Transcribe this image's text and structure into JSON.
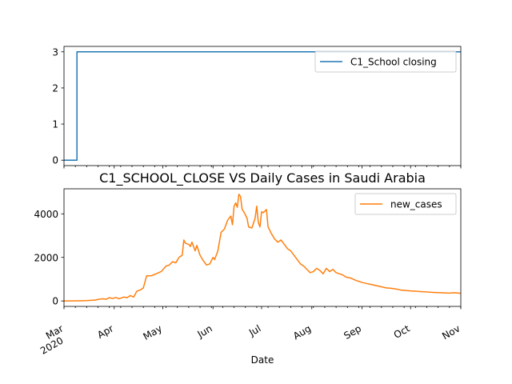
{
  "chart_data": [
    {
      "type": "line",
      "title": "",
      "ylim": [
        -0.15,
        3.15
      ],
      "yticks": [
        0,
        1,
        2,
        3
      ],
      "grid": false,
      "legend_position": "upper-right",
      "series": [
        {
          "name": "C1_School closing",
          "color": "#1f77b4",
          "points": [
            [
              "2020-03-01",
              0
            ],
            [
              "2020-03-09",
              0
            ],
            [
              "2020-03-09",
              3
            ],
            [
              "2020-11-01",
              3
            ]
          ]
        }
      ]
    },
    {
      "type": "line",
      "title": "C1_SCHOOL_CLOSE VS Daily Cases in Saudi Arabia",
      "xlabel": "Date",
      "ylim": [
        -250,
        5150
      ],
      "yticks": [
        0,
        2000,
        4000
      ],
      "xlim": [
        "2020-03-01",
        "2020-11-01"
      ],
      "grid": false,
      "legend_position": "upper-right",
      "xticks": [
        {
          "date": "2020-03-01",
          "label": "Mar",
          "sublabel": "2020"
        },
        {
          "date": "2020-04-01",
          "label": "Apr"
        },
        {
          "date": "2020-05-01",
          "label": "May"
        },
        {
          "date": "2020-06-01",
          "label": "Jun"
        },
        {
          "date": "2020-07-01",
          "label": "Jul"
        },
        {
          "date": "2020-08-01",
          "label": "Aug"
        },
        {
          "date": "2020-09-01",
          "label": "Sep"
        },
        {
          "date": "2020-10-01",
          "label": "Oct"
        },
        {
          "date": "2020-11-01",
          "label": "Nov"
        }
      ],
      "series": [
        {
          "name": "new_cases",
          "color": "#ff7f0e",
          "points": [
            [
              "2020-03-01",
              0
            ],
            [
              "2020-03-10",
              5
            ],
            [
              "2020-03-15",
              15
            ],
            [
              "2020-03-20",
              40
            ],
            [
              "2020-03-22",
              70
            ],
            [
              "2020-03-25",
              100
            ],
            [
              "2020-03-27",
              80
            ],
            [
              "2020-03-29",
              150
            ],
            [
              "2020-03-31",
              110
            ],
            [
              "2020-04-02",
              160
            ],
            [
              "2020-04-04",
              100
            ],
            [
              "2020-04-07",
              180
            ],
            [
              "2020-04-09",
              150
            ],
            [
              "2020-04-11",
              250
            ],
            [
              "2020-04-13",
              180
            ],
            [
              "2020-04-15",
              450
            ],
            [
              "2020-04-17",
              500
            ],
            [
              "2020-04-19",
              600
            ],
            [
              "2020-04-21",
              1150
            ],
            [
              "2020-04-24",
              1160
            ],
            [
              "2020-04-27",
              1250
            ],
            [
              "2020-04-30",
              1350
            ],
            [
              "2020-05-03",
              1600
            ],
            [
              "2020-05-05",
              1650
            ],
            [
              "2020-05-07",
              1800
            ],
            [
              "2020-05-09",
              1750
            ],
            [
              "2020-05-11",
              2000
            ],
            [
              "2020-05-13",
              2100
            ],
            [
              "2020-05-14",
              2800
            ],
            [
              "2020-05-15",
              2650
            ],
            [
              "2020-05-17",
              2600
            ],
            [
              "2020-05-18",
              2500
            ],
            [
              "2020-05-19",
              2700
            ],
            [
              "2020-05-21",
              2300
            ],
            [
              "2020-05-22",
              2550
            ],
            [
              "2020-05-24",
              2100
            ],
            [
              "2020-05-26",
              1850
            ],
            [
              "2020-05-28",
              1650
            ],
            [
              "2020-05-30",
              1700
            ],
            [
              "2020-06-01",
              2000
            ],
            [
              "2020-06-02",
              1900
            ],
            [
              "2020-06-04",
              2300
            ],
            [
              "2020-06-06",
              3150
            ],
            [
              "2020-06-08",
              3300
            ],
            [
              "2020-06-10",
              3700
            ],
            [
              "2020-06-12",
              3900
            ],
            [
              "2020-06-13",
              3500
            ],
            [
              "2020-06-14",
              4350
            ],
            [
              "2020-06-15",
              4500
            ],
            [
              "2020-06-16",
              4300
            ],
            [
              "2020-06-17",
              4900
            ],
            [
              "2020-06-18",
              4800
            ],
            [
              "2020-06-19",
              4200
            ],
            [
              "2020-06-20",
              4100
            ],
            [
              "2020-06-22",
              3800
            ],
            [
              "2020-06-23",
              3400
            ],
            [
              "2020-06-25",
              3350
            ],
            [
              "2020-06-27",
              3800
            ],
            [
              "2020-06-28",
              4350
            ],
            [
              "2020-06-29",
              3600
            ],
            [
              "2020-06-30",
              3400
            ],
            [
              "2020-07-01",
              4100
            ],
            [
              "2020-07-02",
              4050
            ],
            [
              "2020-07-04",
              4200
            ],
            [
              "2020-07-05",
              3400
            ],
            [
              "2020-07-07",
              3100
            ],
            [
              "2020-07-09",
              2850
            ],
            [
              "2020-07-11",
              2700
            ],
            [
              "2020-07-13",
              2800
            ],
            [
              "2020-07-15",
              2600
            ],
            [
              "2020-07-17",
              2400
            ],
            [
              "2020-07-19",
              2300
            ],
            [
              "2020-07-21",
              2100
            ],
            [
              "2020-07-23",
              1900
            ],
            [
              "2020-07-25",
              1700
            ],
            [
              "2020-07-27",
              1600
            ],
            [
              "2020-07-29",
              1450
            ],
            [
              "2020-07-31",
              1300
            ],
            [
              "2020-08-02",
              1350
            ],
            [
              "2020-08-04",
              1500
            ],
            [
              "2020-08-06",
              1400
            ],
            [
              "2020-08-08",
              1250
            ],
            [
              "2020-08-10",
              1500
            ],
            [
              "2020-08-12",
              1350
            ],
            [
              "2020-08-14",
              1450
            ],
            [
              "2020-08-16",
              1300
            ],
            [
              "2020-08-18",
              1250
            ],
            [
              "2020-08-20",
              1200
            ],
            [
              "2020-08-22",
              1100
            ],
            [
              "2020-08-25",
              1050
            ],
            [
              "2020-08-28",
              950
            ],
            [
              "2020-09-01",
              850
            ],
            [
              "2020-09-04",
              800
            ],
            [
              "2020-09-07",
              750
            ],
            [
              "2020-09-10",
              700
            ],
            [
              "2020-09-13",
              650
            ],
            [
              "2020-09-16",
              600
            ],
            [
              "2020-09-19",
              580
            ],
            [
              "2020-09-22",
              550
            ],
            [
              "2020-09-25",
              500
            ],
            [
              "2020-09-28",
              480
            ],
            [
              "2020-10-01",
              460
            ],
            [
              "2020-10-04",
              450
            ],
            [
              "2020-10-07",
              430
            ],
            [
              "2020-10-10",
              420
            ],
            [
              "2020-10-13",
              400
            ],
            [
              "2020-10-16",
              390
            ],
            [
              "2020-10-19",
              380
            ],
            [
              "2020-10-22",
              370
            ],
            [
              "2020-10-25",
              360
            ],
            [
              "2020-10-28",
              380
            ],
            [
              "2020-11-01",
              350
            ]
          ]
        }
      ]
    }
  ]
}
